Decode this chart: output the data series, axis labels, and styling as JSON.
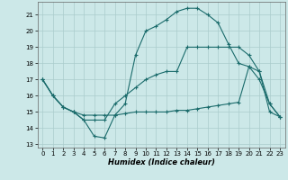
{
  "xlabel": "Humidex (Indice chaleur)",
  "bg_color": "#cce8e8",
  "grid_color": "#aacccc",
  "line_color": "#1a6b6b",
  "xlim": [
    -0.5,
    23.5
  ],
  "ylim": [
    12.8,
    21.8
  ],
  "yticks": [
    13,
    14,
    15,
    16,
    17,
    18,
    19,
    20,
    21
  ],
  "xticks": [
    0,
    1,
    2,
    3,
    4,
    5,
    6,
    7,
    8,
    9,
    10,
    11,
    12,
    13,
    14,
    15,
    16,
    17,
    18,
    19,
    20,
    21,
    22,
    23
  ],
  "line1_x": [
    0,
    1,
    2,
    3,
    4,
    5,
    6,
    7,
    8,
    9,
    10,
    11,
    12,
    13,
    14,
    15,
    16,
    17,
    18,
    19,
    20,
    21,
    22,
    23
  ],
  "line1_y": [
    17.0,
    16.0,
    15.3,
    15.0,
    14.5,
    13.5,
    13.4,
    14.8,
    15.5,
    18.5,
    20.0,
    20.3,
    20.7,
    21.2,
    21.4,
    21.4,
    21.0,
    20.5,
    19.2,
    18.0,
    17.8,
    17.0,
    15.5,
    14.7
  ],
  "line2_x": [
    0,
    1,
    2,
    3,
    4,
    5,
    6,
    7,
    8,
    9,
    10,
    11,
    12,
    13,
    14,
    15,
    16,
    17,
    18,
    19,
    20,
    21,
    22,
    23
  ],
  "line2_y": [
    17.0,
    16.0,
    15.3,
    15.0,
    14.5,
    14.5,
    14.5,
    15.5,
    16.0,
    16.5,
    17.0,
    17.3,
    17.5,
    17.5,
    19.0,
    19.0,
    19.0,
    19.0,
    19.0,
    19.0,
    18.5,
    17.5,
    15.5,
    14.7
  ],
  "line3_x": [
    0,
    1,
    2,
    3,
    4,
    5,
    6,
    7,
    8,
    9,
    10,
    11,
    12,
    13,
    14,
    15,
    16,
    17,
    18,
    19,
    20,
    21,
    22,
    23
  ],
  "line3_y": [
    17.0,
    16.0,
    15.3,
    15.0,
    14.8,
    14.8,
    14.8,
    14.8,
    14.9,
    15.0,
    15.0,
    15.0,
    15.0,
    15.1,
    15.1,
    15.2,
    15.3,
    15.4,
    15.5,
    15.6,
    17.8,
    17.5,
    15.0,
    14.7
  ]
}
